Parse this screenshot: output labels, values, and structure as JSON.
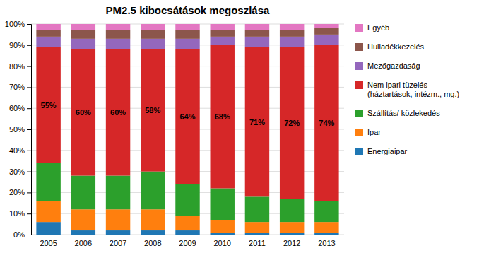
{
  "chart_data": {
    "type": "bar",
    "title": "PM2.5 kibocsátások megoszlása",
    "categories": [
      "2005",
      "2006",
      "2007",
      "2008",
      "2009",
      "2010",
      "2011",
      "2012",
      "2013"
    ],
    "series": [
      {
        "name": "Energiaipar",
        "values": [
          6,
          2,
          2,
          2,
          2,
          1,
          1,
          1,
          1
        ]
      },
      {
        "name": "Ipar",
        "values": [
          10,
          10,
          10,
          10,
          7,
          6,
          5,
          5,
          5
        ]
      },
      {
        "name": "Szállítás/ közlekedés",
        "values": [
          18,
          16,
          16,
          18,
          15,
          15,
          12,
          11,
          10
        ]
      },
      {
        "name": "Nem ipari tüzelés\n(háztartások, intézm., mg.)",
        "values": [
          55,
          60,
          60,
          58,
          64,
          68,
          71,
          72,
          74
        ],
        "data_labels": true,
        "value_labels": [
          "55%",
          "60%",
          "60%",
          "58%",
          "64%",
          "68%",
          "71%",
          "72%",
          "74%"
        ]
      },
      {
        "name": "Mezőgazdaság",
        "values": [
          5,
          5,
          5,
          5,
          5,
          4,
          5,
          5,
          5
        ]
      },
      {
        "name": "Hulladékkezelés",
        "values": [
          3,
          4,
          4,
          4,
          4,
          3,
          3,
          3,
          3
        ]
      },
      {
        "name": "Egyéb",
        "values": [
          3,
          3,
          3,
          3,
          3,
          3,
          3,
          3,
          2
        ]
      }
    ],
    "stacked": true,
    "ylim": [
      0,
      100
    ],
    "yticks": [
      {
        "value": 0,
        "label": "0%"
      },
      {
        "value": 10,
        "label": "10%"
      },
      {
        "value": 20,
        "label": "20%"
      },
      {
        "value": 30,
        "label": "30%"
      },
      {
        "value": 40,
        "label": "40%"
      },
      {
        "value": 50,
        "label": "50%"
      },
      {
        "value": 60,
        "label": "60%"
      },
      {
        "value": 70,
        "label": "70%"
      },
      {
        "value": 80,
        "label": "80%"
      },
      {
        "value": 90,
        "label": "90%"
      },
      {
        "value": 100,
        "label": "100%"
      }
    ],
    "grid": true,
    "legend": "right"
  }
}
